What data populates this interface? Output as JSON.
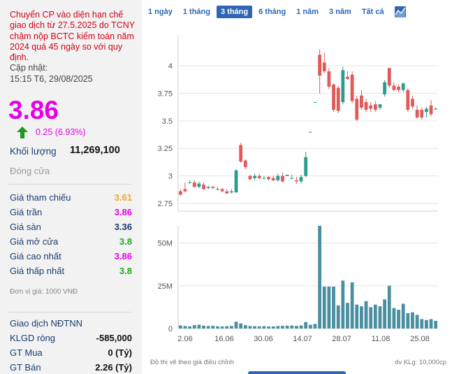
{
  "notice": "Chuyển CP vào diện hạn chế giao dịch từ 27.5.2025 do TCNY chậm nộp BCTC kiểm toán năm 2024 quá 45 ngày so với quy định.",
  "update_label": "Cập nhật:",
  "update_time": "15:15 T6, 29/08/2025",
  "price": "3.86",
  "change": "0.25 (6.93%)",
  "volume_label": "Khối lượng",
  "volume_value": "11,269,100",
  "close_label": "Đóng cửa",
  "stats": [
    {
      "label": "Giá tham chiếu",
      "value": "3.61",
      "color": "#f5a623"
    },
    {
      "label": "Giá trần",
      "value": "3.86",
      "color": "#e600e6"
    },
    {
      "label": "Giá sàn",
      "value": "3.36",
      "color": "#1a3d6e"
    },
    {
      "label": "Giá mở cửa",
      "value": "3.8",
      "color": "#22a822"
    },
    {
      "label": "Giá cao nhất",
      "value": "3.86",
      "color": "#e600e6"
    },
    {
      "label": "Giá thấp nhất",
      "value": "3.8",
      "color": "#22a822"
    }
  ],
  "unit_note": "Đơn vị giá: 1000 VNĐ",
  "foreign_title": "Giao dịch NĐTNN",
  "foreign": [
    {
      "label": "KLGD ròng",
      "value": "-585,000"
    },
    {
      "label": "GT Mua",
      "value": "0 (Tỷ)"
    },
    {
      "label": "GT Bán",
      "value": "2.26 (Tỷ)"
    }
  ],
  "tabs": [
    "1 ngày",
    "1 tháng",
    "3 tháng",
    "6 tháng",
    "1 năm",
    "3 năm",
    "Tất cả"
  ],
  "active_tab": "3 tháng",
  "chart_icon": "chart-type-icon",
  "chart_note_left": "Đồ thị vẽ theo giá điều chỉnh",
  "chart_note_right": "dv KLg: 10,000cp",
  "colors": {
    "up": "#2a9d8f",
    "down": "#e05a5a",
    "volume": "#4a8fa0",
    "grid": "#e6e6e6"
  },
  "chart_data": {
    "type": "candlestick",
    "x_labels": [
      "2.06",
      "16.06",
      "30.06",
      "14.07",
      "28.07",
      "11.08",
      "25.08"
    ],
    "price_axis": {
      "ticks": [
        "2.75",
        "3",
        "3.25",
        "3.5",
        "3.75",
        "4"
      ],
      "ylim": [
        2.68,
        4.28
      ]
    },
    "volume_axis": {
      "ticks": [
        "0",
        "25M",
        "50M"
      ],
      "ylim": [
        0,
        60
      ]
    },
    "candles": [
      [
        2.86,
        2.88,
        2.83,
        2.82
      ],
      [
        2.88,
        2.94,
        2.86,
        2.85
      ],
      [
        2.94,
        2.96,
        2.94,
        2.93
      ],
      [
        2.94,
        2.96,
        2.9,
        2.89
      ],
      [
        2.9,
        2.95,
        2.93,
        2.89
      ],
      [
        2.92,
        2.94,
        2.88,
        2.87
      ],
      [
        2.89,
        2.91,
        2.9,
        2.88
      ],
      [
        2.9,
        2.91,
        2.89,
        2.88
      ],
      [
        2.88,
        2.9,
        2.88,
        2.87
      ],
      [
        2.88,
        2.89,
        2.86,
        2.85
      ],
      [
        2.86,
        2.88,
        2.84,
        2.84
      ],
      [
        2.85,
        2.88,
        2.86,
        2.84
      ],
      [
        2.85,
        3.06,
        3.05,
        2.85
      ],
      [
        3.28,
        3.3,
        3.13,
        3.12
      ],
      [
        3.14,
        3.15,
        3.08,
        3.06
      ],
      [
        3.0,
        3.01,
        2.97,
        2.96
      ],
      [
        2.98,
        3.02,
        3.0,
        2.96
      ],
      [
        3.0,
        3.02,
        2.98,
        2.97
      ],
      [
        2.98,
        3.0,
        2.98,
        2.97
      ],
      [
        2.99,
        3.0,
        2.97,
        2.96
      ],
      [
        2.98,
        3.0,
        2.96,
        2.95
      ],
      [
        2.96,
        3.02,
        3.0,
        2.95
      ],
      [
        3.0,
        3.03,
        2.95,
        2.94
      ],
      [
        3.0,
        3.01,
        3.01,
        3.0
      ],
      [
        2.98,
        3.01,
        2.98,
        2.97
      ],
      [
        2.96,
        2.99,
        2.95,
        2.93
      ],
      [
        2.95,
        3.01,
        2.99,
        2.93
      ],
      [
        3.0,
        3.22,
        3.17,
        2.99
      ],
      [
        3.4,
        3.4,
        3.4,
        3.4
      ],
      [
        3.67,
        3.67,
        3.67,
        3.67
      ],
      [
        4.1,
        4.15,
        3.91,
        3.75
      ],
      [
        4.03,
        4.12,
        3.95,
        3.93
      ],
      [
        3.95,
        3.98,
        3.81,
        3.79
      ],
      [
        3.83,
        3.84,
        3.6,
        3.58
      ],
      [
        3.8,
        3.82,
        3.59,
        3.57
      ],
      [
        3.67,
        3.99,
        3.96,
        3.65
      ],
      [
        3.9,
        3.95,
        3.88,
        3.87
      ],
      [
        3.92,
        3.95,
        3.68,
        3.66
      ],
      [
        3.7,
        3.73,
        3.51,
        3.5
      ],
      [
        3.73,
        3.78,
        3.62,
        3.6
      ],
      [
        3.67,
        3.7,
        3.6,
        3.58
      ],
      [
        3.64,
        3.67,
        3.61,
        3.58
      ],
      [
        3.65,
        3.68,
        3.6,
        3.58
      ],
      [
        3.62,
        3.65,
        3.65,
        3.6
      ],
      [
        3.74,
        3.87,
        3.85,
        3.72
      ],
      [
        3.98,
        3.98,
        3.82,
        3.8
      ],
      [
        3.82,
        3.85,
        3.78,
        3.77
      ],
      [
        3.81,
        3.83,
        3.78,
        3.76
      ],
      [
        3.78,
        3.85,
        3.84,
        3.76
      ],
      [
        3.78,
        3.8,
        3.6,
        3.58
      ],
      [
        3.7,
        3.73,
        3.63,
        3.61
      ],
      [
        3.6,
        3.64,
        3.53,
        3.52
      ],
      [
        3.6,
        3.62,
        3.53,
        3.51
      ],
      [
        3.58,
        3.63,
        3.61,
        3.53
      ],
      [
        3.64,
        3.69,
        3.56,
        3.54
      ],
      [
        3.61,
        3.62,
        3.61,
        3.6
      ]
    ],
    "volume": [
      1.8,
      1.5,
      1.3,
      2.0,
      2.2,
      1.7,
      1.5,
      1.6,
      1.3,
      1.2,
      1.4,
      1.5,
      4.0,
      3.0,
      2.0,
      1.5,
      1.4,
      1.3,
      1.4,
      1.2,
      1.3,
      1.5,
      1.6,
      1.7,
      1.8,
      1.6,
      1.8,
      3.8,
      2.2,
      2.7,
      60,
      24.5,
      24.5,
      24.5,
      13.5,
      28,
      15,
      27,
      14,
      13,
      16,
      12.5,
      14,
      13,
      17,
      25,
      12,
      11,
      14.5,
      9,
      9.5,
      8,
      5.5,
      5,
      5.5,
      4.5
    ]
  }
}
